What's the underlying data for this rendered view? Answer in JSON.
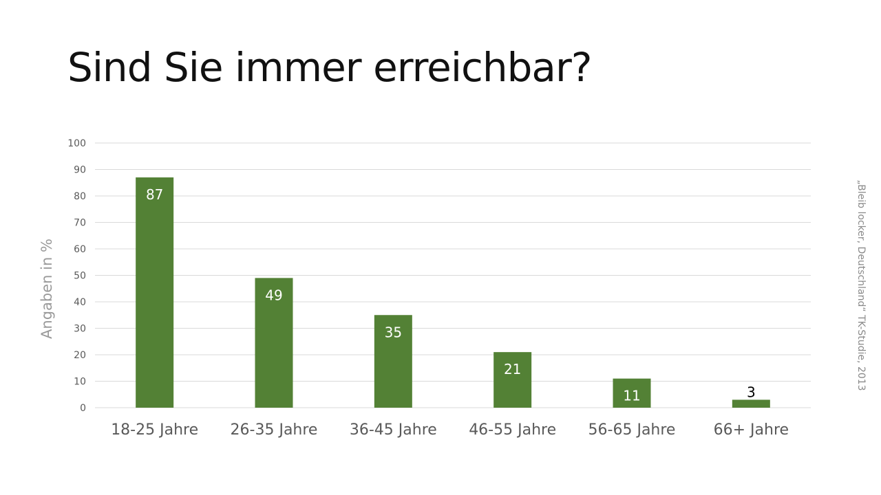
{
  "title": "Sind Sie immer erreichbar?",
  "source": "„Bleib locker, Deutschland“ TK-Studie, 2013",
  "colors": {
    "bar": "#538135",
    "grid": "#d9d9d9",
    "label_inside": "#ffffff",
    "label_outside": "#000000"
  },
  "chart_data": {
    "type": "bar",
    "title": "Sind Sie immer erreichbar?",
    "xlabel": "",
    "ylabel": "Angaben in %",
    "categories": [
      "18-25 Jahre",
      "26-35 Jahre",
      "36-45 Jahre",
      "46-55 Jahre",
      "56-65 Jahre",
      "66+ Jahre"
    ],
    "values": [
      87,
      49,
      35,
      21,
      11,
      3
    ],
    "ylim": [
      0,
      100
    ],
    "yticks": [
      "0",
      "10",
      "20",
      "30",
      "40",
      "50",
      "60",
      "70",
      "80",
      "90",
      "100"
    ],
    "grid": true,
    "legend": "none"
  }
}
